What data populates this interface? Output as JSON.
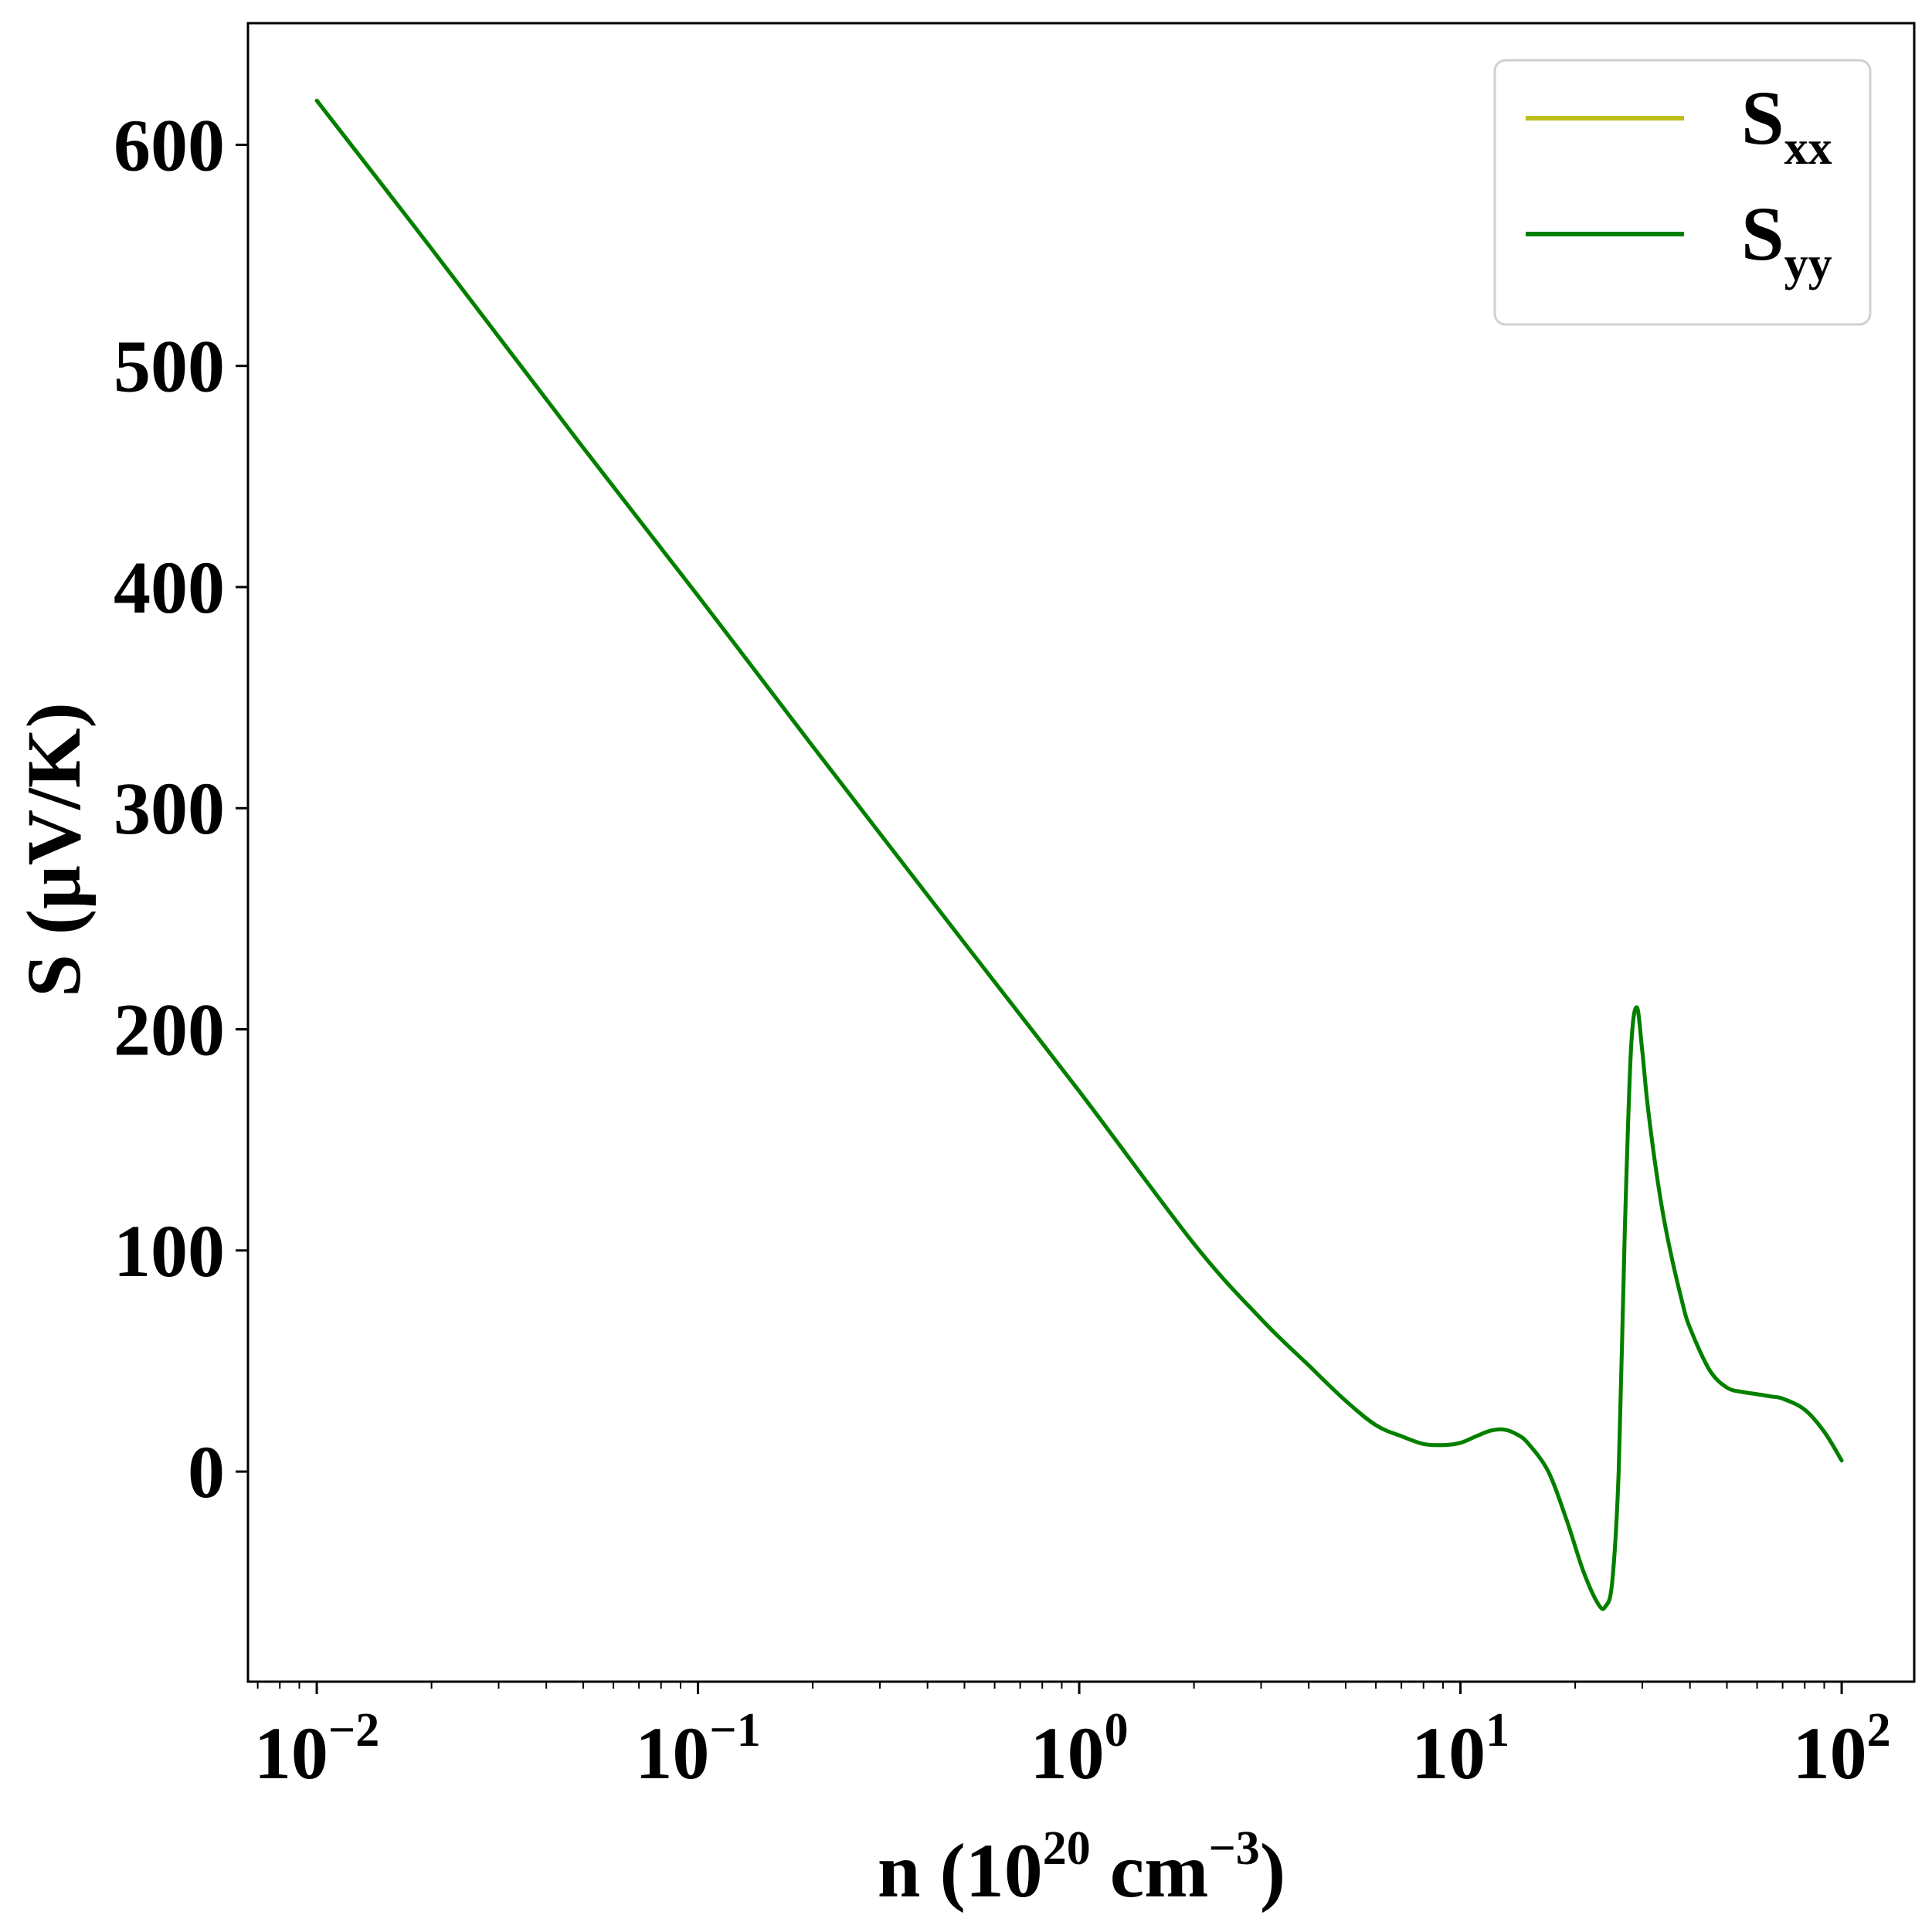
{
  "chart_data": {
    "type": "line",
    "xscale": "log",
    "xlim": [
      0.0066,
      155
    ],
    "ylim": [
      -95,
      655
    ],
    "xlabel": {
      "base": "n (10",
      "sup1": "20",
      "mid": " cm",
      "sup2": "−3",
      "end": ")"
    },
    "ylabel": "S (μV/K)",
    "x_ticks": [
      {
        "value": 0.01,
        "base": "10",
        "exp": "−2"
      },
      {
        "value": 0.1,
        "base": "10",
        "exp": "−1"
      },
      {
        "value": 1,
        "base": "10",
        "exp": "0"
      },
      {
        "value": 10,
        "base": "10",
        "exp": "1"
      },
      {
        "value": 100,
        "base": "10",
        "exp": "2"
      }
    ],
    "y_ticks": [
      {
        "value": 0,
        "label": "0"
      },
      {
        "value": 100,
        "label": "100"
      },
      {
        "value": 200,
        "label": "200"
      },
      {
        "value": 300,
        "label": "300"
      },
      {
        "value": 400,
        "label": "400"
      },
      {
        "value": 500,
        "label": "500"
      },
      {
        "value": 600,
        "label": "600"
      }
    ],
    "legend": {
      "position": "top-right",
      "entries": [
        {
          "base": "S",
          "sub": "xx",
          "color": "#bfbf1a"
        },
        {
          "base": "S",
          "sub": "yy",
          "color": "#008000"
        }
      ]
    },
    "series": [
      {
        "name": "S_xx",
        "color": "#bfbf1a",
        "x": [
          0.01,
          0.02,
          0.05,
          0.1,
          0.2,
          0.5,
          1,
          2,
          3,
          4,
          5,
          6,
          7,
          8,
          9,
          10,
          11,
          12,
          13,
          14,
          15,
          17,
          19,
          21,
          23,
          24,
          25,
          26,
          27,
          28,
          29,
          30,
          31,
          33,
          35,
          38,
          40,
          45,
          50,
          55,
          60,
          65,
          70,
          80,
          90,
          100
        ],
        "y": [
          620,
          553,
          463,
          396,
          328,
          239,
          172,
          103,
          69,
          48,
          32,
          21,
          16,
          12.5,
          12,
          13,
          16,
          18.5,
          19,
          17,
          13,
          0,
          -22,
          -45,
          -60,
          -61,
          -50,
          0,
          110,
          190,
          210,
          190,
          165,
          130,
          105,
          78,
          65,
          46,
          38,
          36,
          35,
          34,
          33,
          28,
          18,
          5
        ]
      },
      {
        "name": "S_yy",
        "color": "#008000",
        "x": [
          0.01,
          0.02,
          0.05,
          0.1,
          0.2,
          0.5,
          1,
          2,
          3,
          4,
          5,
          6,
          7,
          8,
          9,
          10,
          11,
          12,
          13,
          14,
          15,
          17,
          19,
          21,
          23,
          24,
          25,
          26,
          27,
          28,
          29,
          30,
          31,
          33,
          35,
          38,
          40,
          45,
          50,
          55,
          60,
          65,
          70,
          80,
          90,
          100
        ],
        "y": [
          620,
          553,
          463,
          396,
          328,
          239,
          172,
          103,
          69,
          48,
          32,
          21,
          16,
          12.5,
          12,
          13,
          16,
          18.5,
          19,
          17,
          13,
          0,
          -22,
          -45,
          -60,
          -61,
          -50,
          0,
          110,
          190,
          210,
          190,
          165,
          130,
          105,
          78,
          65,
          46,
          38,
          36,
          35,
          34,
          33,
          28,
          18,
          5
        ]
      }
    ]
  }
}
